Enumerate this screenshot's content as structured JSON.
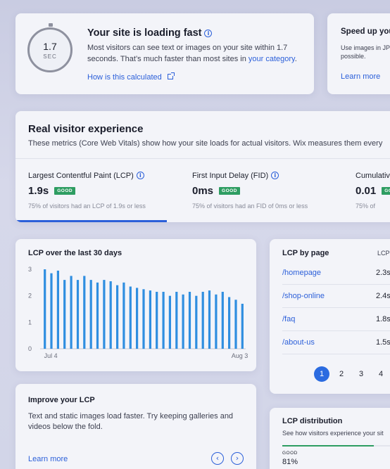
{
  "speed": {
    "stopwatch_value": "1.7",
    "stopwatch_unit": "SEC",
    "title": "Your site is loading fast",
    "desc_text": "Most visitors can see text or images on your site within 1.7 seconds. That’s much faster than most sites in ",
    "desc_link": "your category",
    "desc_end": ".",
    "link": "How is this calculated"
  },
  "speedup": {
    "title": "Speed up your",
    "desc": "Use images in JP when possible.",
    "link": "Learn more"
  },
  "rve": {
    "title": "Real visitor experience",
    "desc": "These metrics (Core Web Vitals) show how your site loads for actual visitors. Wix measures them every",
    "metrics": [
      {
        "label": "Largest Contentful Paint (LCP)",
        "value": "1.9s",
        "badge": "GOOD",
        "sub": "75% of visitors had an LCP of 1.9s or less"
      },
      {
        "label": "First Input Delay (FID)",
        "value": "0ms",
        "badge": "GOOD",
        "sub": "75% of visitors had an FID of 0ms or less"
      },
      {
        "label": "Cumulative",
        "value": "0.01",
        "badge": "GOOD",
        "sub": "75% of"
      }
    ]
  },
  "lcp_chart": {
    "title": "LCP over the last 30 days"
  },
  "chart_data": {
    "type": "bar",
    "title": "LCP over the last 30 days",
    "x_start_label": "Jul 4",
    "x_end_label": "Aug 3",
    "ylim": [
      0,
      3
    ],
    "yticks": [
      "3",
      "2",
      "1",
      "0"
    ],
    "values": [
      3.0,
      2.85,
      2.95,
      2.6,
      2.75,
      2.6,
      2.75,
      2.6,
      2.5,
      2.6,
      2.55,
      2.4,
      2.5,
      2.35,
      2.3,
      2.25,
      2.2,
      2.15,
      2.15,
      2.0,
      2.15,
      2.05,
      2.15,
      2.0,
      2.15,
      2.2,
      2.05,
      2.15,
      1.95,
      1.85,
      1.7
    ],
    "color": "#2f8ee0"
  },
  "lcp_page": {
    "title": "LCP by page",
    "col": "LCP",
    "rows": [
      {
        "name": "/homepage",
        "value": "2.3s"
      },
      {
        "name": "/shop-online",
        "value": "2.4s"
      },
      {
        "name": "/faq",
        "value": "1.8s"
      },
      {
        "name": "/about-us",
        "value": "1.5s"
      }
    ],
    "pages": [
      "1",
      "2",
      "3",
      "4"
    ]
  },
  "improve": {
    "title": "Improve your LCP",
    "desc": "Text and static images load faster. Try keeping galleries and videos below the fold.",
    "link": "Learn more"
  },
  "dist": {
    "title": "LCP distribution",
    "desc": "See how visitors experience your sit",
    "good_label": "GOOD",
    "good_value": "81%",
    "good_fraction": 0.81
  },
  "colors": {
    "accent": "#2b5fd9",
    "good": "#2e9d62",
    "bar": "#2f8ee0"
  }
}
